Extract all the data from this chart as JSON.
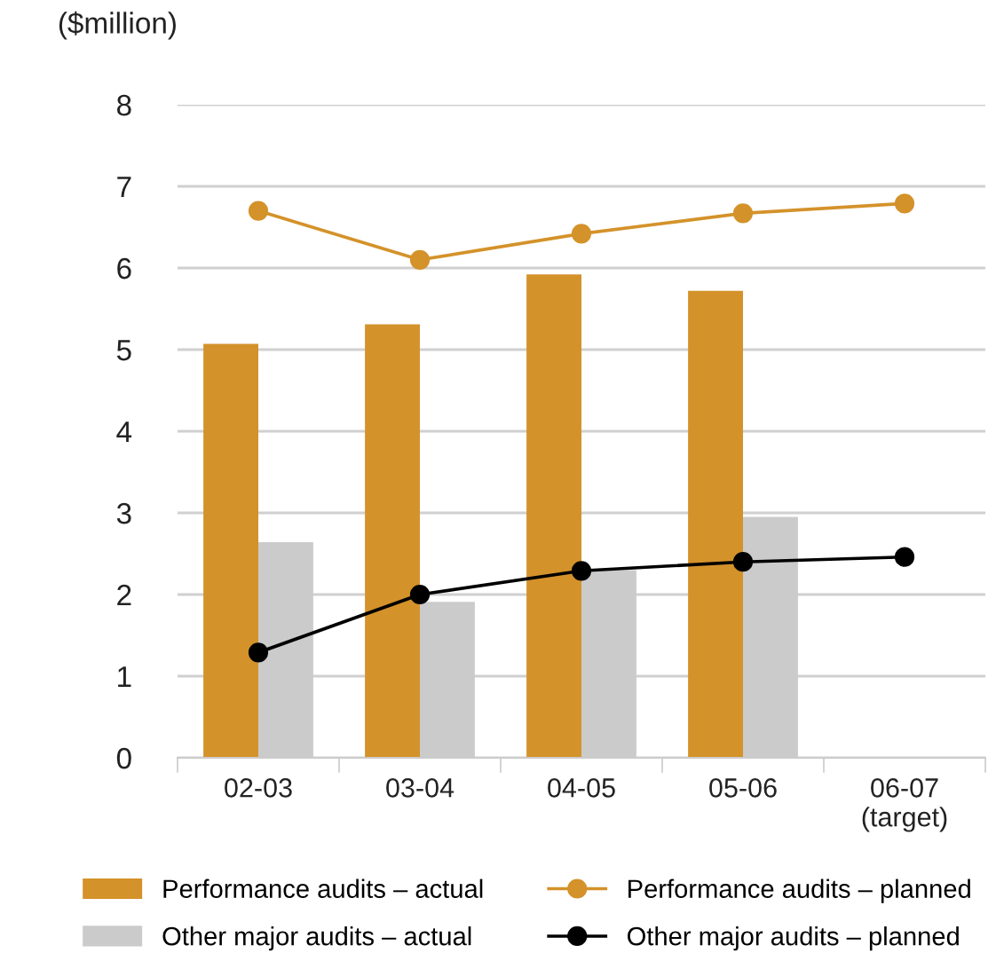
{
  "chart_data": {
    "type": "bar",
    "ylabel": "($million)",
    "categories": [
      "02-03",
      "03-04",
      "04-05",
      "05-06",
      "06-07\n(target)"
    ],
    "series": [
      {
        "name": "Performance audits – actual",
        "color": "#d4922a",
        "values": [
          5.07,
          5.31,
          5.92,
          5.72,
          null
        ]
      },
      {
        "name": "Other major audits – actual",
        "color": "#cbcbcb",
        "values": [
          2.64,
          1.91,
          2.3,
          2.95,
          null
        ]
      },
      {
        "name": "Performance audits – planned",
        "type": "line",
        "color": "#d4922a",
        "values": [
          6.7,
          6.1,
          6.42,
          6.67,
          6.79
        ]
      },
      {
        "name": "Other major audits – planned",
        "type": "line",
        "color": "#000000",
        "values": [
          1.29,
          2.0,
          2.29,
          2.4,
          2.46
        ]
      }
    ],
    "ylim": [
      0,
      8
    ],
    "yticks": [
      0,
      1,
      2,
      3,
      4,
      5,
      6,
      7,
      8
    ],
    "grid": "y",
    "legend": "bottom",
    "marker": "circle"
  }
}
